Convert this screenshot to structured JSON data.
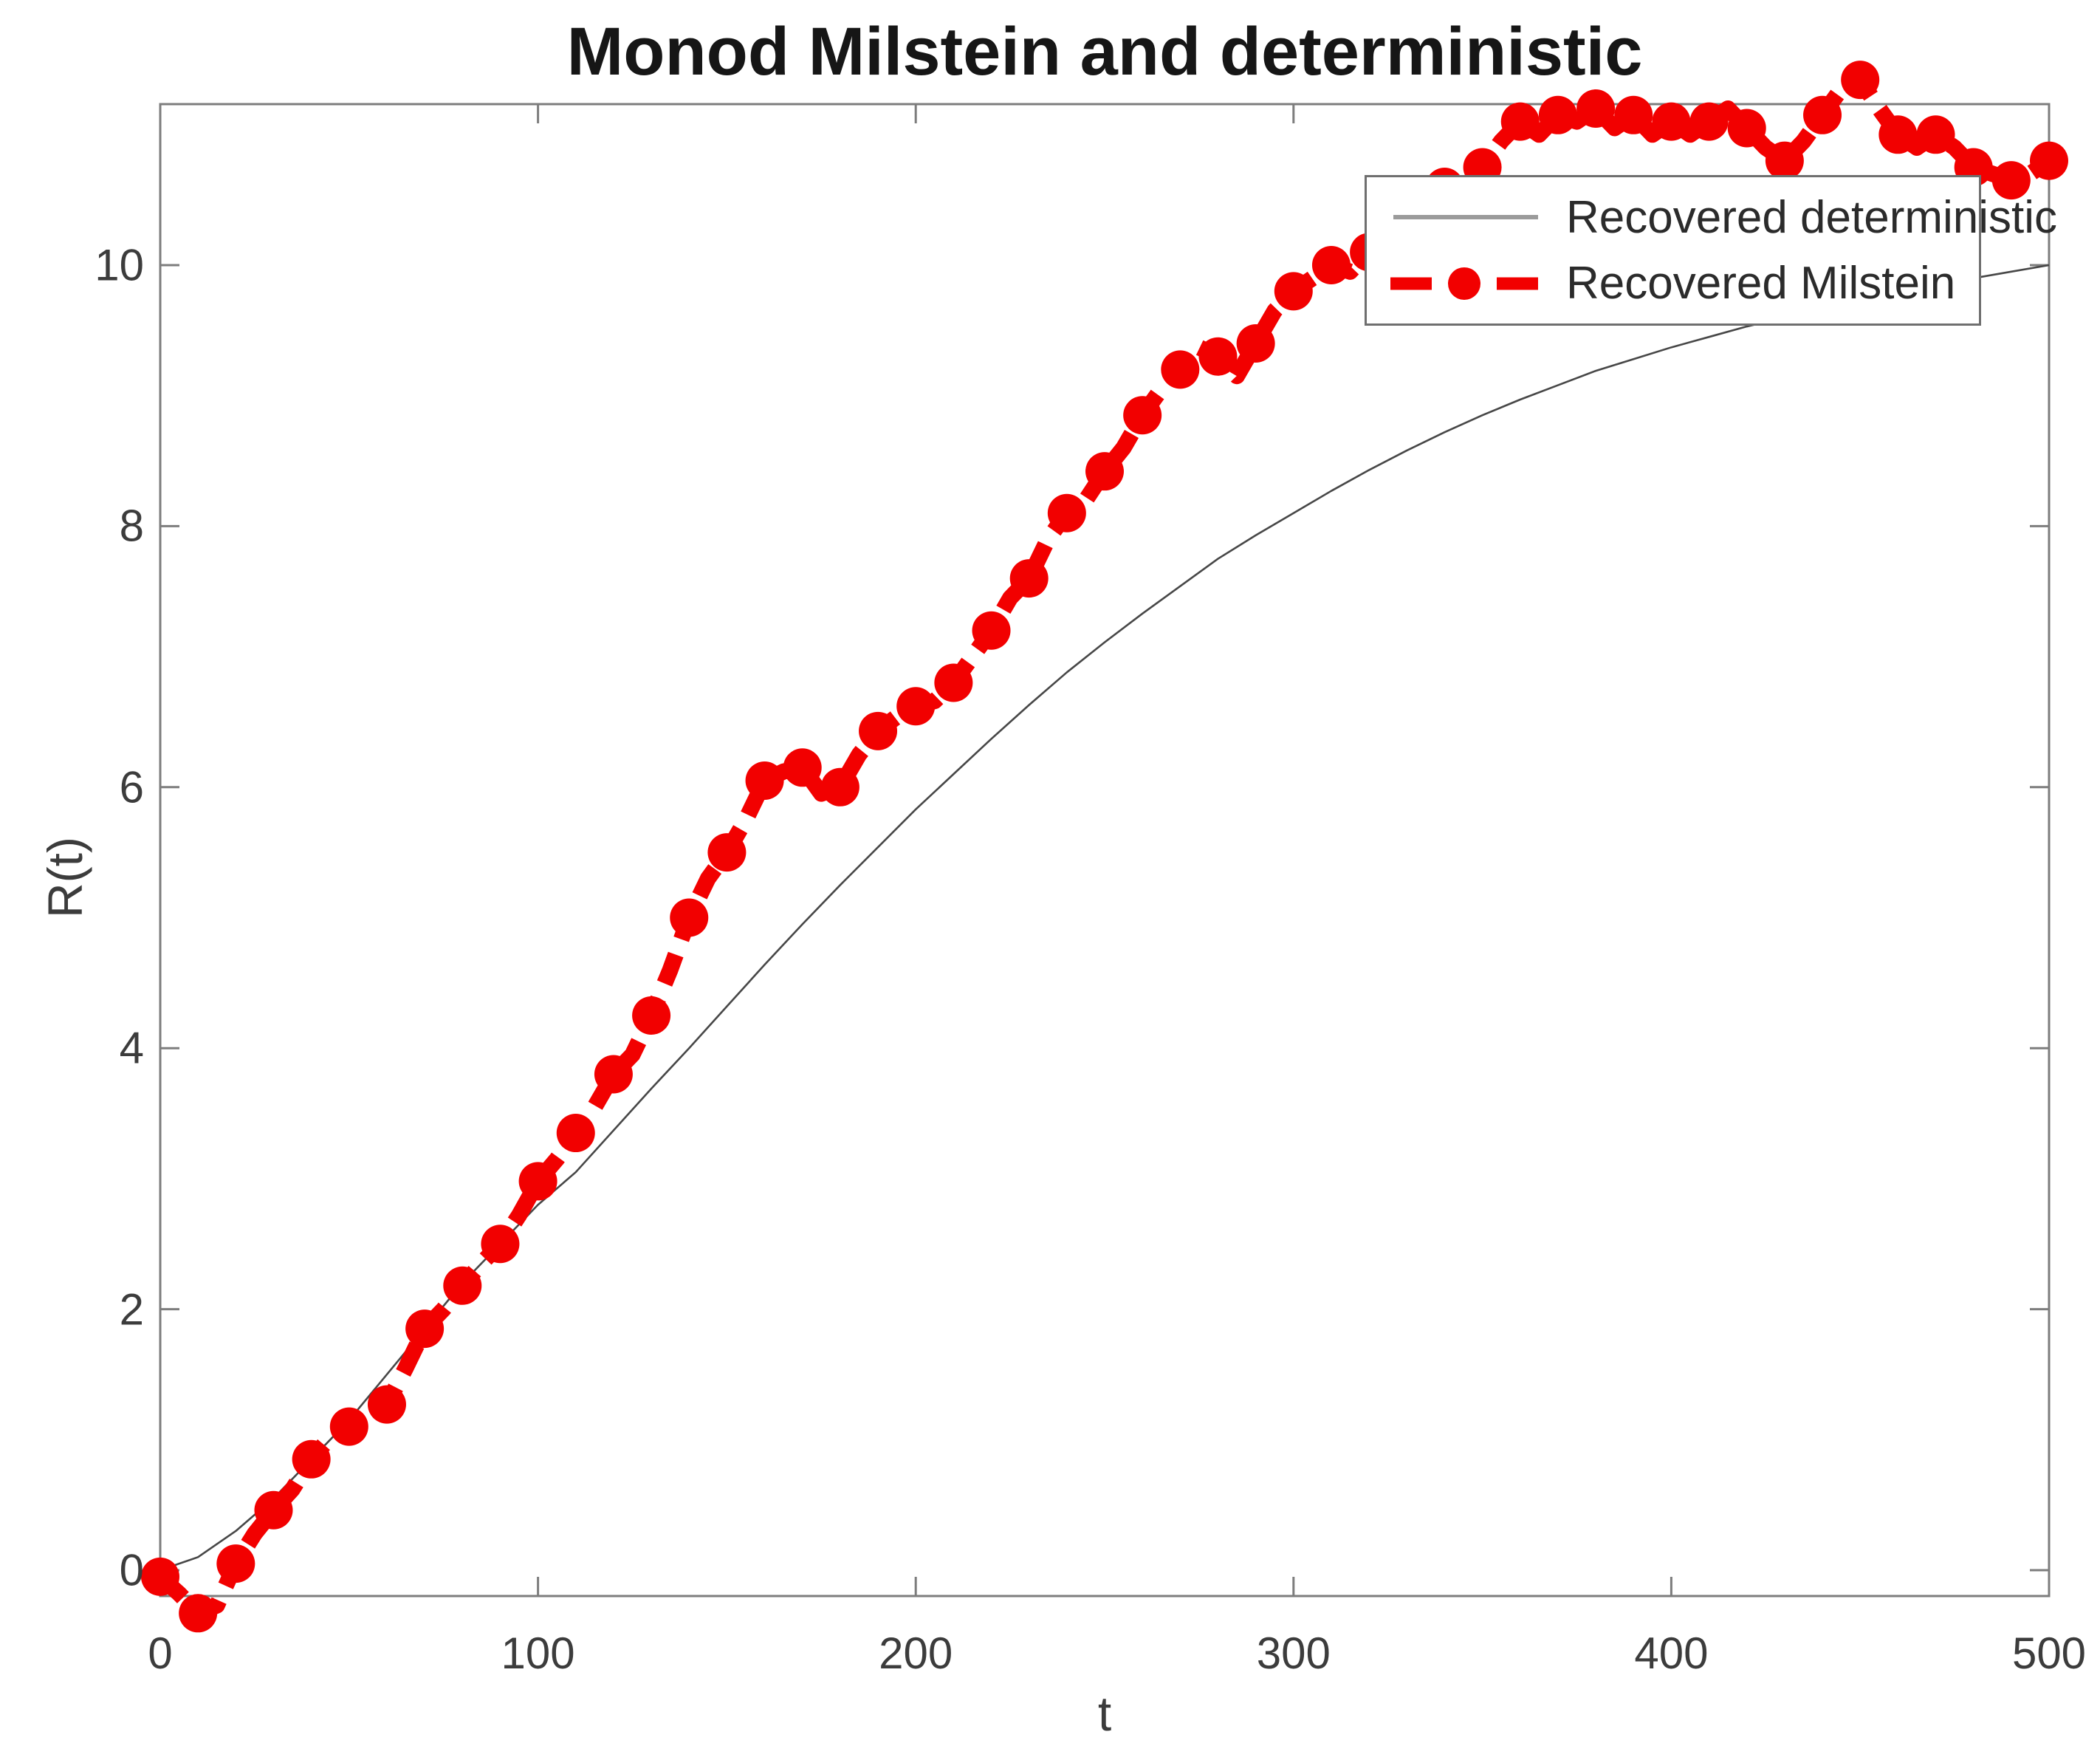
{
  "title": "Monod Milstein and deterministic",
  "axes": {
    "xlabel": "t",
    "ylabel": "R(t)",
    "x_ticks": [
      0,
      100,
      200,
      300,
      400,
      500
    ],
    "y_ticks": [
      0,
      2,
      4,
      6,
      8,
      10
    ]
  },
  "legend": {
    "entries": [
      {
        "label": "Recovered deterministic",
        "swatch": "gray-solid-line"
      },
      {
        "label": "Recovered Milstein",
        "swatch": "red-dash-circle-dash"
      }
    ],
    "position": "upper right"
  },
  "colors": {
    "milstein": "#f20000",
    "deterministic_line": "#474747",
    "deterministic_legend_sample": "#9b9b9b",
    "axis_box": "#7d7d7d",
    "tick_text": "#3c3c3c"
  },
  "chart_data": {
    "type": "line",
    "title": "Monod Milstein and deterministic",
    "xlabel": "t",
    "ylabel": "R(t)",
    "xlim": [
      0,
      500
    ],
    "ylim": [
      -0.22,
      11.23
    ],
    "grid": false,
    "legend_position": "upper right",
    "series": [
      {
        "name": "Recovered deterministic",
        "style": "thin solid dark-gray line",
        "x": [
          0,
          10,
          20,
          30,
          40,
          50,
          60,
          70,
          80,
          90,
          100,
          110,
          120,
          130,
          140,
          150,
          160,
          170,
          180,
          190,
          200,
          210,
          220,
          230,
          240,
          250,
          260,
          270,
          280,
          290,
          300,
          310,
          320,
          330,
          340,
          350,
          360,
          370,
          380,
          390,
          400,
          410,
          420,
          430,
          440,
          450,
          460,
          470,
          480,
          490,
          500
        ],
        "y": [
          0,
          0.1,
          0.3,
          0.55,
          0.85,
          1.15,
          1.5,
          1.85,
          2.2,
          2.5,
          2.8,
          3.05,
          3.37,
          3.69,
          4.0,
          4.32,
          4.64,
          4.95,
          5.25,
          5.54,
          5.83,
          6.1,
          6.37,
          6.63,
          6.88,
          7.11,
          7.33,
          7.54,
          7.75,
          7.93,
          8.1,
          8.27,
          8.43,
          8.58,
          8.72,
          8.85,
          8.97,
          9.08,
          9.19,
          9.28,
          9.37,
          9.45,
          9.53,
          9.6,
          9.67,
          9.74,
          9.8,
          9.85,
          9.9,
          9.95,
          10.0
        ]
      },
      {
        "name": "Recovered Milstein",
        "style": "thick red dashed line with circle markers",
        "x": [
          0,
          5,
          10,
          15,
          20,
          25,
          30,
          35,
          40,
          45,
          50,
          55,
          60,
          65,
          70,
          75,
          80,
          85,
          90,
          95,
          100,
          105,
          110,
          115,
          120,
          125,
          130,
          135,
          140,
          145,
          150,
          155,
          160,
          165,
          170,
          175,
          180,
          185,
          190,
          195,
          200,
          205,
          210,
          215,
          220,
          225,
          230,
          235,
          240,
          245,
          250,
          255,
          260,
          265,
          270,
          275,
          280,
          285,
          290,
          295,
          300,
          305,
          310,
          315,
          320,
          325,
          330,
          335,
          340,
          345,
          350,
          355,
          360,
          365,
          370,
          375,
          380,
          385,
          390,
          395,
          400,
          405,
          410,
          415,
          420,
          425,
          430,
          435,
          440,
          445,
          450,
          455,
          460,
          465,
          470,
          475,
          480,
          485,
          490,
          495,
          500
        ],
        "y": [
          -0.05,
          -0.18,
          -0.33,
          -0.27,
          0.05,
          0.28,
          0.46,
          0.62,
          0.85,
          1.02,
          1.1,
          1.18,
          1.27,
          1.55,
          1.85,
          2.0,
          2.18,
          2.35,
          2.5,
          2.72,
          2.98,
          3.15,
          3.35,
          3.55,
          3.8,
          3.95,
          4.25,
          4.6,
          5.0,
          5.3,
          5.5,
          5.75,
          6.05,
          6.12,
          6.15,
          5.95,
          6.0,
          6.25,
          6.43,
          6.54,
          6.62,
          6.66,
          6.8,
          7.0,
          7.2,
          7.45,
          7.6,
          7.9,
          8.1,
          8.2,
          8.42,
          8.6,
          8.85,
          9.05,
          9.2,
          9.37,
          9.3,
          9.15,
          9.4,
          9.65,
          9.8,
          9.9,
          10.0,
          9.95,
          10.1,
          10.3,
          10.45,
          10.5,
          10.6,
          10.55,
          10.75,
          10.95,
          11.1,
          11.0,
          11.15,
          11.1,
          11.2,
          11.05,
          11.15,
          11.0,
          11.1,
          11.0,
          11.1,
          11.2,
          11.05,
          10.9,
          10.8,
          10.95,
          11.15,
          11.35,
          11.42,
          11.2,
          11.0,
          10.9,
          11.0,
          10.9,
          10.75,
          10.7,
          10.65,
          10.7,
          10.8
        ]
      }
    ]
  }
}
